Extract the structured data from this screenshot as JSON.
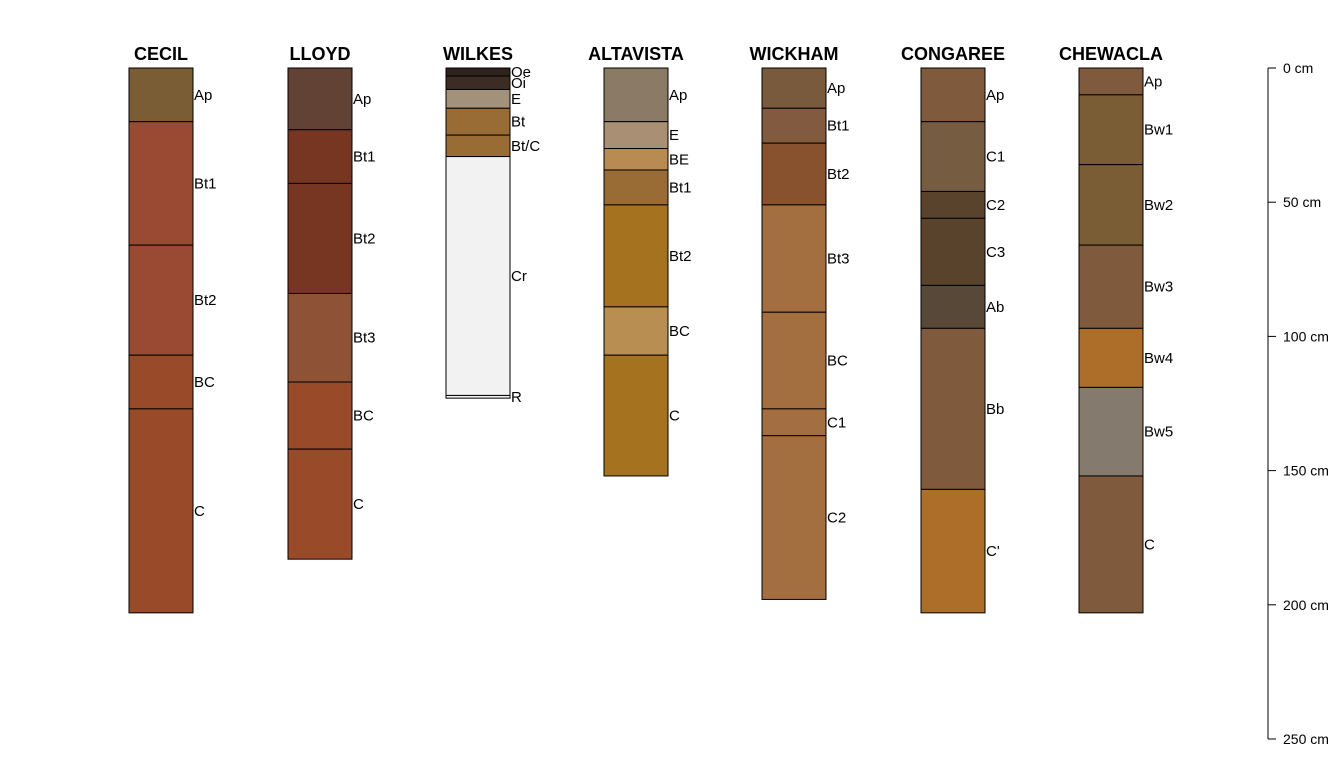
{
  "chart_data": {
    "type": "soil-profile",
    "depth_unit": "cm",
    "axis": {
      "ticks": [
        0,
        50,
        100,
        150,
        200,
        250
      ],
      "tick_labels": [
        "0 cm",
        "50 cm",
        "100 cm",
        "150 cm",
        "200 cm",
        "250 cm"
      ],
      "range": [
        0,
        250
      ]
    },
    "profiles": [
      {
        "name": "CECIL",
        "horizons": [
          {
            "label": "Ap",
            "top": 0,
            "bottom": 20,
            "color": "#7A5C35"
          },
          {
            "label": "Bt1",
            "top": 20,
            "bottom": 66,
            "color": "#9A4A33"
          },
          {
            "label": "Bt2",
            "top": 66,
            "bottom": 107,
            "color": "#9A4A33"
          },
          {
            "label": "BC",
            "top": 107,
            "bottom": 127,
            "color": "#994A28"
          },
          {
            "label": "C",
            "top": 127,
            "bottom": 203,
            "color": "#994A28"
          }
        ]
      },
      {
        "name": "LLOYD",
        "horizons": [
          {
            "label": "Ap",
            "top": 0,
            "bottom": 23,
            "color": "#634236"
          },
          {
            "label": "Bt1",
            "top": 23,
            "bottom": 43,
            "color": "#763622"
          },
          {
            "label": "Bt2",
            "top": 43,
            "bottom": 84,
            "color": "#763622"
          },
          {
            "label": "Bt3",
            "top": 84,
            "bottom": 117,
            "color": "#8E5237"
          },
          {
            "label": "BC",
            "top": 117,
            "bottom": 142,
            "color": "#994A28"
          },
          {
            "label": "C",
            "top": 142,
            "bottom": 183,
            "color": "#994A28"
          }
        ]
      },
      {
        "name": "WILKES",
        "horizons": [
          {
            "label": "Oe",
            "top": 0,
            "bottom": 3,
            "color": "#2E221C"
          },
          {
            "label": "Oi",
            "top": 3,
            "bottom": 8,
            "color": "#3D2C24"
          },
          {
            "label": "E",
            "top": 8,
            "bottom": 15,
            "color": "#A3927A"
          },
          {
            "label": "Bt",
            "top": 15,
            "bottom": 25,
            "color": "#9A6C35"
          },
          {
            "label": "Bt/C",
            "top": 25,
            "bottom": 33,
            "color": "#9A6C35"
          },
          {
            "label": "Cr",
            "top": 33,
            "bottom": 122,
            "color": "#F2F2F2"
          },
          {
            "label": "R",
            "top": 122,
            "bottom": 123,
            "color": "#F2F2F2"
          }
        ]
      },
      {
        "name": "ALTAVISTA",
        "horizons": [
          {
            "label": "Ap",
            "top": 0,
            "bottom": 20,
            "color": "#8B7A66"
          },
          {
            "label": "E",
            "top": 20,
            "bottom": 30,
            "color": "#A99074"
          },
          {
            "label": "BE",
            "top": 30,
            "bottom": 38,
            "color": "#B88B52"
          },
          {
            "label": "Bt1",
            "top": 38,
            "bottom": 51,
            "color": "#9A6C35"
          },
          {
            "label": "Bt2",
            "top": 51,
            "bottom": 89,
            "color": "#A5721F"
          },
          {
            "label": "BC",
            "top": 89,
            "bottom": 107,
            "color": "#B88E52"
          },
          {
            "label": "C",
            "top": 107,
            "bottom": 152,
            "color": "#A5721F"
          }
        ]
      },
      {
        "name": "WICKHAM",
        "horizons": [
          {
            "label": "Ap",
            "top": 0,
            "bottom": 15,
            "color": "#7A5A3C"
          },
          {
            "label": "Bt1",
            "top": 15,
            "bottom": 28,
            "color": "#815A40"
          },
          {
            "label": "Bt2",
            "top": 28,
            "bottom": 51,
            "color": "#89522E"
          },
          {
            "label": "Bt3",
            "top": 51,
            "bottom": 91,
            "color": "#A36E40"
          },
          {
            "label": "BC",
            "top": 91,
            "bottom": 127,
            "color": "#A36E40"
          },
          {
            "label": "C1",
            "top": 127,
            "bottom": 137,
            "color": "#A36E40"
          },
          {
            "label": "C2",
            "top": 137,
            "bottom": 198,
            "color": "#A36E40"
          }
        ]
      },
      {
        "name": "CONGAREE",
        "horizons": [
          {
            "label": "Ap",
            "top": 0,
            "bottom": 20,
            "color": "#7F5A3C"
          },
          {
            "label": "C1",
            "top": 20,
            "bottom": 46,
            "color": "#765C40"
          },
          {
            "label": "C2",
            "top": 46,
            "bottom": 56,
            "color": "#5A432C"
          },
          {
            "label": "C3",
            "top": 56,
            "bottom": 81,
            "color": "#5A432C"
          },
          {
            "label": "Ab",
            "top": 81,
            "bottom": 97,
            "color": "#574838"
          },
          {
            "label": "Bb",
            "top": 97,
            "bottom": 157,
            "color": "#7F5A3C"
          },
          {
            "label": "C'",
            "top": 157,
            "bottom": 203,
            "color": "#AC6E28"
          }
        ]
      },
      {
        "name": "CHEWACLA",
        "horizons": [
          {
            "label": "Ap",
            "top": 0,
            "bottom": 10,
            "color": "#7F5A3C"
          },
          {
            "label": "Bw1",
            "top": 10,
            "bottom": 36,
            "color": "#7A5C35"
          },
          {
            "label": "Bw2",
            "top": 36,
            "bottom": 66,
            "color": "#7A5C35"
          },
          {
            "label": "Bw3",
            "top": 66,
            "bottom": 97,
            "color": "#7F5A3C"
          },
          {
            "label": "Bw4",
            "top": 97,
            "bottom": 119,
            "color": "#AC6E28"
          },
          {
            "label": "Bw5",
            "top": 119,
            "bottom": 152,
            "color": "#857A6E"
          },
          {
            "label": "C",
            "top": 152,
            "bottom": 203,
            "color": "#7F5A3C"
          }
        ]
      }
    ]
  }
}
